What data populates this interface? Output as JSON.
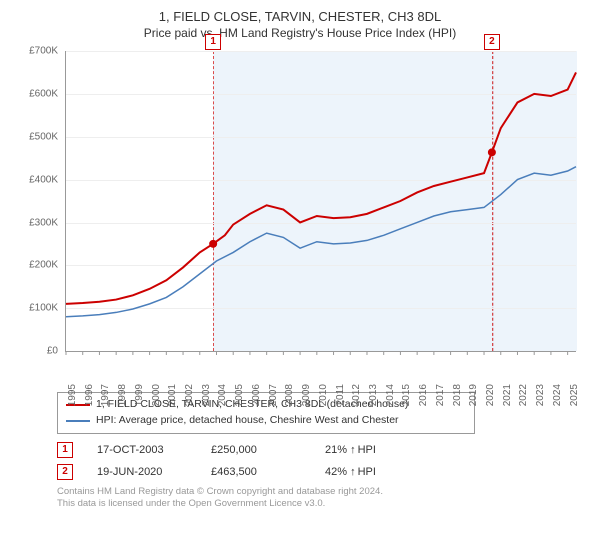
{
  "header": {
    "title": "1, FIELD CLOSE, TARVIN, CHESTER, CH3 8DL",
    "subtitle": "Price paid vs. HM Land Registry's House Price Index (HPI)"
  },
  "chart": {
    "type": "line",
    "background_color": "#ffffff",
    "grid_color": "#eeeeee",
    "shade_color": "#e6f0fa",
    "dash_color": "#cc0000",
    "ylim": [
      0,
      700000
    ],
    "yticks": [
      {
        "v": 0,
        "label": "£0"
      },
      {
        "v": 100000,
        "label": "£100K"
      },
      {
        "v": 200000,
        "label": "£200K"
      },
      {
        "v": 300000,
        "label": "£300K"
      },
      {
        "v": 400000,
        "label": "£400K"
      },
      {
        "v": 500000,
        "label": "£500K"
      },
      {
        "v": 600000,
        "label": "£600K"
      },
      {
        "v": 700000,
        "label": "£700K"
      }
    ],
    "xlim": [
      1995,
      2025.5
    ],
    "xticks": [
      1995,
      1996,
      1997,
      1998,
      1999,
      2000,
      2001,
      2002,
      2003,
      2004,
      2005,
      2006,
      2007,
      2008,
      2009,
      2010,
      2011,
      2012,
      2013,
      2014,
      2015,
      2016,
      2017,
      2018,
      2019,
      2020,
      2021,
      2022,
      2023,
      2024,
      2025
    ],
    "series": [
      {
        "name": "price_paid",
        "color": "#cc0000",
        "width": 2,
        "points": [
          [
            1995,
            110000
          ],
          [
            1996,
            112000
          ],
          [
            1997,
            115000
          ],
          [
            1998,
            120000
          ],
          [
            1999,
            130000
          ],
          [
            2000,
            145000
          ],
          [
            2001,
            165000
          ],
          [
            2002,
            195000
          ],
          [
            2003,
            230000
          ],
          [
            2003.8,
            250000
          ],
          [
            2004.5,
            270000
          ],
          [
            2005,
            295000
          ],
          [
            2006,
            320000
          ],
          [
            2007,
            340000
          ],
          [
            2008,
            330000
          ],
          [
            2009,
            300000
          ],
          [
            2010,
            315000
          ],
          [
            2011,
            310000
          ],
          [
            2012,
            312000
          ],
          [
            2013,
            320000
          ],
          [
            2014,
            335000
          ],
          [
            2015,
            350000
          ],
          [
            2016,
            370000
          ],
          [
            2017,
            385000
          ],
          [
            2018,
            395000
          ],
          [
            2019,
            405000
          ],
          [
            2020,
            415000
          ],
          [
            2020.47,
            463500
          ],
          [
            2021,
            520000
          ],
          [
            2022,
            580000
          ],
          [
            2023,
            600000
          ],
          [
            2024,
            595000
          ],
          [
            2025,
            610000
          ],
          [
            2025.5,
            650000
          ]
        ]
      },
      {
        "name": "hpi",
        "color": "#4a7ebb",
        "width": 1.5,
        "points": [
          [
            1995,
            80000
          ],
          [
            1996,
            82000
          ],
          [
            1997,
            85000
          ],
          [
            1998,
            90000
          ],
          [
            1999,
            98000
          ],
          [
            2000,
            110000
          ],
          [
            2001,
            125000
          ],
          [
            2002,
            150000
          ],
          [
            2003,
            180000
          ],
          [
            2004,
            210000
          ],
          [
            2005,
            230000
          ],
          [
            2006,
            255000
          ],
          [
            2007,
            275000
          ],
          [
            2008,
            265000
          ],
          [
            2009,
            240000
          ],
          [
            2010,
            255000
          ],
          [
            2011,
            250000
          ],
          [
            2012,
            252000
          ],
          [
            2013,
            258000
          ],
          [
            2014,
            270000
          ],
          [
            2015,
            285000
          ],
          [
            2016,
            300000
          ],
          [
            2017,
            315000
          ],
          [
            2018,
            325000
          ],
          [
            2019,
            330000
          ],
          [
            2020,
            335000
          ],
          [
            2021,
            365000
          ],
          [
            2022,
            400000
          ],
          [
            2023,
            415000
          ],
          [
            2024,
            410000
          ],
          [
            2025,
            420000
          ],
          [
            2025.5,
            430000
          ]
        ]
      }
    ],
    "sale_points": [
      {
        "x": 2003.8,
        "y": 250000
      },
      {
        "x": 2020.47,
        "y": 463500
      }
    ],
    "shade_ranges": [
      {
        "from": 2003.8,
        "to": 2020.47,
        "marker": "1",
        "marker_side": "left"
      },
      {
        "from": 2020.47,
        "to": 2025.5,
        "marker": "2",
        "marker_side": "left"
      }
    ]
  },
  "legend": {
    "items": [
      {
        "color": "#cc0000",
        "label": "1, FIELD CLOSE, TARVIN, CHESTER, CH3 8DL (detached house)"
      },
      {
        "color": "#4a7ebb",
        "label": "HPI: Average price, detached house, Cheshire West and Chester"
      }
    ]
  },
  "events": [
    {
      "marker": "1",
      "date": "17-OCT-2003",
      "price": "£250,000",
      "delta": "21%",
      "delta_label": "HPI"
    },
    {
      "marker": "2",
      "date": "19-JUN-2020",
      "price": "£463,500",
      "delta": "42%",
      "delta_label": "HPI"
    }
  ],
  "footer": {
    "line1": "Contains HM Land Registry data © Crown copyright and database right 2024.",
    "line2": "This data is licensed under the Open Government Licence v3.0."
  }
}
